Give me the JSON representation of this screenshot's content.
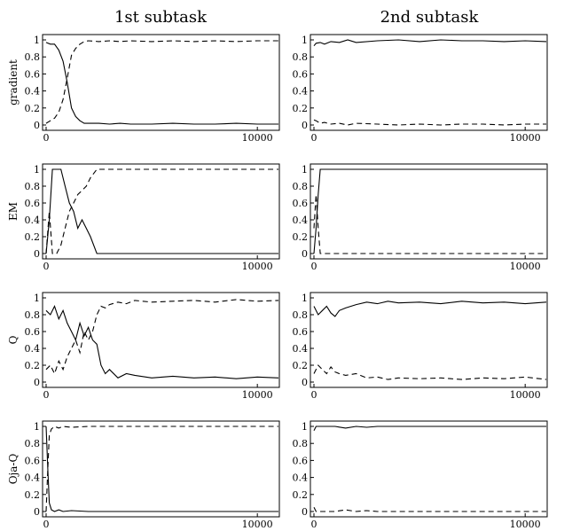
{
  "columns": [
    "1st subtask",
    "2nd subtask"
  ],
  "rows": [
    "gradient",
    "EM",
    "Q",
    "Oja-Q"
  ],
  "chart_data": [
    {
      "id": "gradient-1st",
      "type": "line",
      "ylabel": "gradient",
      "xlim": [
        0,
        11000
      ],
      "ylim": [
        0,
        1
      ],
      "yticks": [
        "0",
        "0.2",
        "0.4",
        "0.6",
        "0.8",
        "1"
      ],
      "xticks": [
        "0",
        "10000"
      ],
      "x": [
        0,
        200,
        400,
        600,
        800,
        1000,
        1200,
        1400,
        1600,
        1800,
        2000,
        2500,
        3000,
        3500,
        4000,
        5000,
        6000,
        7000,
        8000,
        9000,
        10000,
        11000
      ],
      "series": [
        {
          "style": "solid",
          "values": [
            0.97,
            0.95,
            0.95,
            0.88,
            0.75,
            0.5,
            0.2,
            0.1,
            0.05,
            0.02,
            0.02,
            0.02,
            0.01,
            0.02,
            0.01,
            0.01,
            0.02,
            0.01,
            0.01,
            0.02,
            0.01,
            0.01
          ]
        },
        {
          "style": "dashed",
          "values": [
            0.02,
            0.05,
            0.08,
            0.15,
            0.3,
            0.55,
            0.82,
            0.9,
            0.95,
            0.98,
            0.99,
            0.98,
            0.99,
            0.98,
            0.99,
            0.98,
            0.99,
            0.98,
            0.99,
            0.98,
            0.99,
            0.99
          ]
        }
      ]
    },
    {
      "id": "gradient-2nd",
      "type": "line",
      "xlim": [
        0,
        11000
      ],
      "ylim": [
        0,
        1
      ],
      "yticks": [
        "0",
        "0.2",
        "0.4",
        "0.6",
        "0.8",
        "1"
      ],
      "xticks": [
        "0",
        "10000"
      ],
      "x": [
        0,
        100,
        300,
        500,
        800,
        1200,
        1600,
        2000,
        3000,
        4000,
        5000,
        6000,
        7000,
        8000,
        9000,
        10000,
        11000
      ],
      "series": [
        {
          "style": "solid",
          "values": [
            0.93,
            0.96,
            0.97,
            0.95,
            0.98,
            0.97,
            1.0,
            0.97,
            0.99,
            1.0,
            0.98,
            1.0,
            0.99,
            0.99,
            0.98,
            0.99,
            0.98
          ]
        },
        {
          "style": "dashed",
          "values": [
            0.06,
            0.05,
            0.02,
            0.03,
            0.01,
            0.02,
            0.0,
            0.02,
            0.01,
            0.0,
            0.01,
            0.0,
            0.01,
            0.01,
            0.0,
            0.01,
            0.01
          ]
        }
      ]
    },
    {
      "id": "em-1st",
      "type": "line",
      "ylabel": "EM",
      "xlim": [
        0,
        11000
      ],
      "ylim": [
        0,
        1
      ],
      "yticks": [
        "0",
        "0.2",
        "0.4",
        "0.6",
        "0.8",
        "1"
      ],
      "xticks": [
        "0",
        "10000"
      ],
      "x": [
        0,
        150,
        300,
        500,
        700,
        900,
        1100,
        1300,
        1500,
        1700,
        1900,
        2100,
        2400,
        3000,
        5000,
        8000,
        11000
      ],
      "series": [
        {
          "style": "solid",
          "values": [
            0.0,
            0.4,
            1.0,
            1.0,
            1.0,
            0.8,
            0.6,
            0.5,
            0.3,
            0.4,
            0.3,
            0.2,
            0.0,
            0.0,
            0.0,
            0.0,
            0.0
          ]
        },
        {
          "style": "dashed",
          "values": [
            0.0,
            0.5,
            0.0,
            0.0,
            0.1,
            0.3,
            0.5,
            0.6,
            0.7,
            0.75,
            0.8,
            0.9,
            1.0,
            1.0,
            1.0,
            1.0,
            1.0
          ]
        }
      ]
    },
    {
      "id": "em-2nd",
      "type": "line",
      "xlim": [
        0,
        11000
      ],
      "ylim": [
        0,
        1
      ],
      "yticks": [
        "0",
        "0.2",
        "0.4",
        "0.6",
        "0.8",
        "1"
      ],
      "xticks": [
        "0",
        "10000"
      ],
      "x": [
        0,
        100,
        200,
        300,
        400,
        600,
        1000,
        3000,
        6000,
        11000
      ],
      "series": [
        {
          "style": "solid",
          "values": [
            0.0,
            0.3,
            0.7,
            1.0,
            1.0,
            1.0,
            1.0,
            1.0,
            1.0,
            1.0
          ]
        },
        {
          "style": "dashed",
          "values": [
            0.3,
            0.7,
            0.3,
            0.0,
            0.0,
            0.0,
            0.0,
            0.0,
            0.0,
            0.0
          ]
        }
      ]
    },
    {
      "id": "q-1st",
      "type": "line",
      "ylabel": "Q",
      "xlim": [
        0,
        11000
      ],
      "ylim": [
        0,
        1
      ],
      "yticks": [
        "0",
        "0.2",
        "0.4",
        "0.6",
        "0.8",
        "1"
      ],
      "xticks": [
        "0",
        "10000"
      ],
      "x": [
        0,
        200,
        400,
        600,
        800,
        1000,
        1200,
        1400,
        1600,
        1800,
        2000,
        2200,
        2400,
        2600,
        2800,
        3000,
        3400,
        3800,
        4200,
        5000,
        6000,
        7000,
        8000,
        9000,
        10000,
        11000
      ],
      "series": [
        {
          "style": "solid",
          "values": [
            0.85,
            0.8,
            0.9,
            0.75,
            0.85,
            0.7,
            0.6,
            0.5,
            0.7,
            0.55,
            0.65,
            0.5,
            0.45,
            0.2,
            0.1,
            0.15,
            0.05,
            0.1,
            0.08,
            0.05,
            0.07,
            0.05,
            0.06,
            0.04,
            0.06,
            0.05
          ]
        },
        {
          "style": "dashed",
          "values": [
            0.15,
            0.2,
            0.1,
            0.25,
            0.15,
            0.3,
            0.4,
            0.5,
            0.35,
            0.6,
            0.5,
            0.6,
            0.8,
            0.9,
            0.88,
            0.92,
            0.95,
            0.93,
            0.97,
            0.95,
            0.96,
            0.97,
            0.95,
            0.98,
            0.96,
            0.97
          ]
        }
      ]
    },
    {
      "id": "q-2nd",
      "type": "line",
      "xlim": [
        0,
        11000
      ],
      "ylim": [
        0,
        1
      ],
      "yticks": [
        "0",
        "0.2",
        "0.4",
        "0.6",
        "0.8",
        "1"
      ],
      "xticks": [
        "0",
        "10000"
      ],
      "x": [
        0,
        200,
        400,
        600,
        800,
        1000,
        1200,
        1500,
        2000,
        2500,
        3000,
        3500,
        4000,
        5000,
        6000,
        7000,
        8000,
        9000,
        10000,
        11000
      ],
      "series": [
        {
          "style": "solid",
          "values": [
            0.9,
            0.8,
            0.85,
            0.9,
            0.82,
            0.78,
            0.85,
            0.88,
            0.92,
            0.95,
            0.93,
            0.96,
            0.94,
            0.95,
            0.93,
            0.96,
            0.94,
            0.95,
            0.93,
            0.95
          ]
        },
        {
          "style": "dashed",
          "values": [
            0.1,
            0.2,
            0.15,
            0.1,
            0.18,
            0.12,
            0.1,
            0.08,
            0.1,
            0.05,
            0.06,
            0.03,
            0.05,
            0.04,
            0.05,
            0.03,
            0.05,
            0.04,
            0.06,
            0.03
          ]
        }
      ]
    },
    {
      "id": "ojaq-1st",
      "type": "line",
      "ylabel": "Oja-Q",
      "xlim": [
        0,
        11000
      ],
      "ylim": [
        0,
        1
      ],
      "yticks": [
        "0",
        "0.2",
        "0.4",
        "0.6",
        "0.8",
        "1"
      ],
      "xticks": [
        "0",
        "10000"
      ],
      "x": [
        0,
        80,
        150,
        250,
        400,
        600,
        800,
        1200,
        2000,
        5000,
        11000
      ],
      "series": [
        {
          "style": "solid",
          "values": [
            1.0,
            0.5,
            0.1,
            0.02,
            0.0,
            0.02,
            0.0,
            0.01,
            0.0,
            0.0,
            0.0
          ]
        },
        {
          "style": "dashed",
          "values": [
            0.0,
            0.5,
            0.9,
            0.97,
            1.0,
            0.98,
            1.0,
            0.99,
            1.0,
            1.0,
            1.0
          ]
        }
      ]
    },
    {
      "id": "ojaq-2nd",
      "type": "line",
      "xlim": [
        0,
        11000
      ],
      "ylim": [
        0,
        1
      ],
      "yticks": [
        "0",
        "0.2",
        "0.4",
        "0.6",
        "0.8",
        "1"
      ],
      "xticks": [
        "0",
        "10000"
      ],
      "x": [
        0,
        100,
        200,
        500,
        1000,
        1500,
        2000,
        2500,
        3000,
        5000,
        8000,
        11000
      ],
      "series": [
        {
          "style": "solid",
          "values": [
            0.95,
            1.0,
            1.0,
            1.0,
            1.0,
            0.98,
            1.0,
            0.99,
            1.0,
            1.0,
            1.0,
            1.0
          ]
        },
        {
          "style": "dashed",
          "values": [
            0.05,
            0.0,
            0.0,
            0.0,
            0.0,
            0.02,
            0.0,
            0.01,
            0.0,
            0.0,
            0.0,
            0.0
          ]
        }
      ]
    }
  ]
}
